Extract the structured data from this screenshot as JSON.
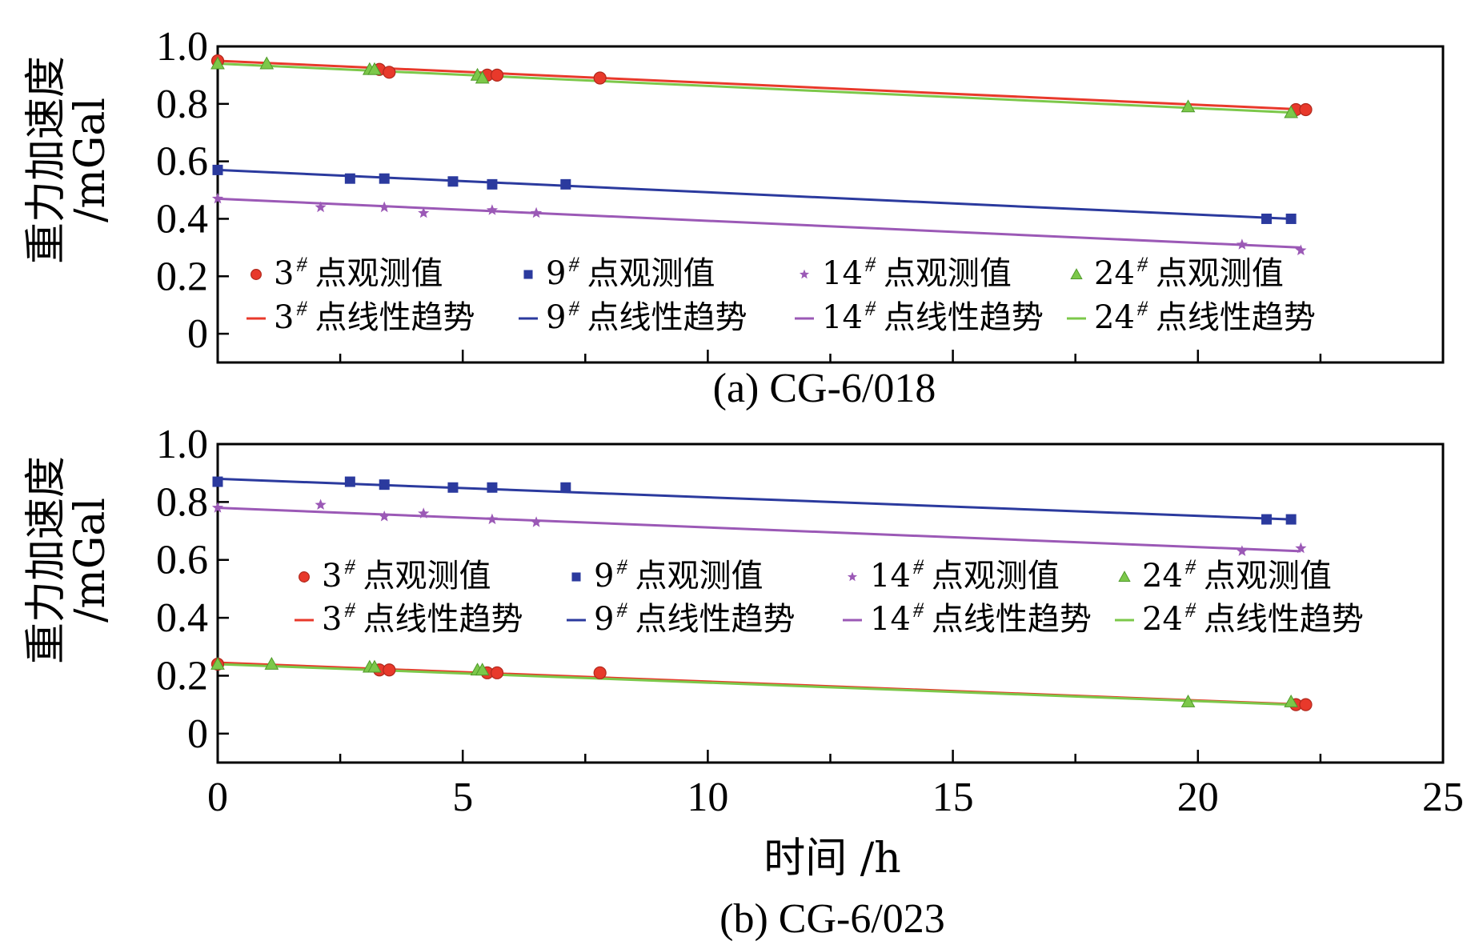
{
  "chart_data": [
    {
      "type": "scatter",
      "caption": "(a) CG-6/018",
      "ylabel_line1": "重力加速度",
      "ylabel_line2": "/mGal",
      "xlabel": "",
      "xlim": [
        0,
        25
      ],
      "ylim": [
        -0.1,
        1.0
      ],
      "xticks": [
        0,
        5,
        10,
        15,
        20,
        25
      ],
      "yticks": [
        0,
        0.2,
        0.4,
        0.6,
        0.8,
        1.0
      ],
      "ytick_labels": [
        "0",
        "0.2",
        "0.4",
        "0.6",
        "0.8",
        "1.0"
      ],
      "show_xtick_labels": false,
      "legend_location": "lower-center",
      "series": [
        {
          "name": "3# 点观测值",
          "kind": "points",
          "marker": "circle",
          "color": "#e8392b",
          "x": [
            0.0,
            3.3,
            3.5,
            5.5,
            5.7,
            7.8,
            22.0,
            22.2
          ],
          "y": [
            0.95,
            0.92,
            0.91,
            0.9,
            0.9,
            0.89,
            0.78,
            0.78
          ]
        },
        {
          "name": "9# 点观测值",
          "kind": "points",
          "marker": "square",
          "color": "#2b3a9e",
          "x": [
            0.0,
            2.7,
            3.4,
            4.8,
            5.6,
            7.1,
            21.4,
            21.9
          ],
          "y": [
            0.57,
            0.54,
            0.54,
            0.53,
            0.52,
            0.52,
            0.4,
            0.4
          ]
        },
        {
          "name": "14# 点观测值",
          "kind": "points",
          "marker": "star",
          "color": "#9b59b6",
          "x": [
            0.0,
            2.1,
            3.4,
            4.2,
            5.6,
            6.5,
            20.9,
            22.1
          ],
          "y": [
            0.47,
            0.44,
            0.44,
            0.42,
            0.43,
            0.42,
            0.31,
            0.29
          ]
        },
        {
          "name": "24# 点观测值",
          "kind": "points",
          "marker": "triangle",
          "color": "#7cc84a",
          "x": [
            0.0,
            1.0,
            3.1,
            3.2,
            5.3,
            5.4,
            19.8,
            21.9
          ],
          "y": [
            0.94,
            0.94,
            0.92,
            0.92,
            0.9,
            0.89,
            0.79,
            0.77
          ]
        },
        {
          "name": "3# 点线性趋势",
          "kind": "line",
          "color": "#e8392b",
          "x": [
            0,
            22.2
          ],
          "y": [
            0.95,
            0.78
          ]
        },
        {
          "name": "9# 点线性趋势",
          "kind": "line",
          "color": "#2b3a9e",
          "x": [
            0,
            21.9
          ],
          "y": [
            0.57,
            0.4
          ]
        },
        {
          "name": "14# 点线性趋势",
          "kind": "line",
          "color": "#9b59b6",
          "x": [
            0,
            22.1
          ],
          "y": [
            0.47,
            0.3
          ]
        },
        {
          "name": "24# 点线性趋势",
          "kind": "line",
          "color": "#7cc84a",
          "x": [
            0,
            21.9
          ],
          "y": [
            0.94,
            0.77
          ]
        }
      ]
    },
    {
      "type": "scatter",
      "caption": "(b) CG-6/023",
      "ylabel_line1": "重力加速度",
      "ylabel_line2": "/mGal",
      "xlabel": "时间 /h",
      "xlim": [
        0,
        25
      ],
      "ylim": [
        -0.1,
        1.0
      ],
      "xticks": [
        0,
        5,
        10,
        15,
        20,
        25
      ],
      "yticks": [
        0,
        0.2,
        0.4,
        0.6,
        0.8,
        1.0
      ],
      "ytick_labels": [
        "0",
        "0.2",
        "0.4",
        "0.6",
        "0.8",
        "1.0"
      ],
      "show_xtick_labels": true,
      "legend_location": "center",
      "series": [
        {
          "name": "3# 点观测值",
          "kind": "points",
          "marker": "circle",
          "color": "#e8392b",
          "x": [
            0.0,
            3.3,
            3.5,
            5.5,
            5.7,
            7.8,
            22.0,
            22.2
          ],
          "y": [
            0.24,
            0.22,
            0.22,
            0.21,
            0.21,
            0.21,
            0.1,
            0.1
          ]
        },
        {
          "name": "9# 点观测值",
          "kind": "points",
          "marker": "square",
          "color": "#2b3a9e",
          "x": [
            0.0,
            2.7,
            3.4,
            4.8,
            5.6,
            7.1,
            21.4,
            21.9
          ],
          "y": [
            0.87,
            0.87,
            0.86,
            0.85,
            0.85,
            0.85,
            0.74,
            0.74
          ]
        },
        {
          "name": "14# 点观测值",
          "kind": "points",
          "marker": "star",
          "color": "#9b59b6",
          "x": [
            0.0,
            2.1,
            3.4,
            4.2,
            5.6,
            6.5,
            20.9,
            22.1
          ],
          "y": [
            0.78,
            0.79,
            0.75,
            0.76,
            0.74,
            0.73,
            0.63,
            0.64
          ]
        },
        {
          "name": "24# 点观测值",
          "kind": "points",
          "marker": "triangle",
          "color": "#7cc84a",
          "x": [
            0.0,
            1.1,
            3.1,
            3.2,
            5.3,
            5.4,
            19.8,
            21.9
          ],
          "y": [
            0.24,
            0.24,
            0.23,
            0.23,
            0.22,
            0.22,
            0.11,
            0.11
          ]
        },
        {
          "name": "3# 点线性趋势",
          "kind": "line",
          "color": "#e8392b",
          "x": [
            0,
            22.2
          ],
          "y": [
            0.245,
            0.1
          ]
        },
        {
          "name": "9# 点线性趋势",
          "kind": "line",
          "color": "#2b3a9e",
          "x": [
            0,
            21.9
          ],
          "y": [
            0.88,
            0.74
          ]
        },
        {
          "name": "14# 点线性趋势",
          "kind": "line",
          "color": "#9b59b6",
          "x": [
            0,
            22.1
          ],
          "y": [
            0.78,
            0.63
          ]
        },
        {
          "name": "24# 点线性趋势",
          "kind": "line",
          "color": "#7cc84a",
          "x": [
            0,
            21.9
          ],
          "y": [
            0.24,
            0.1
          ]
        }
      ]
    }
  ]
}
